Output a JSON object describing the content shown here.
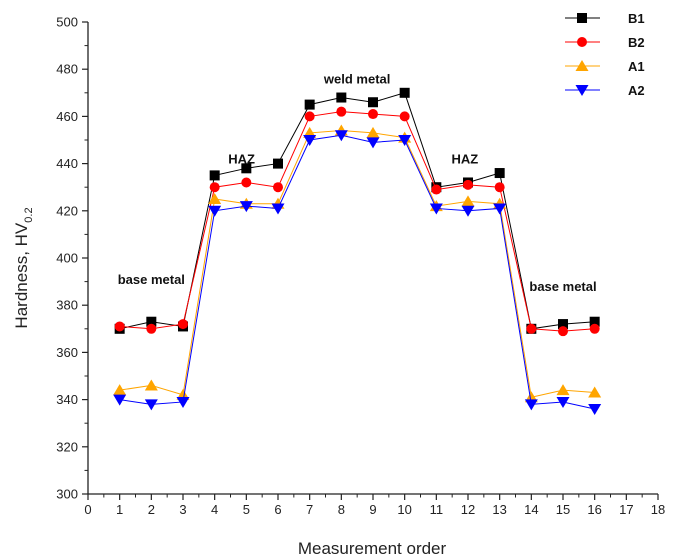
{
  "chart_data": {
    "type": "line",
    "xlabel": "Measurement order",
    "ylabel": "Hardness, HV",
    "ylabel_subscript": "0.2",
    "xlim": [
      0,
      18
    ],
    "ylim": [
      300,
      500
    ],
    "x_ticks": [
      0,
      1,
      2,
      3,
      4,
      5,
      6,
      7,
      8,
      9,
      10,
      11,
      12,
      13,
      14,
      15,
      16,
      17,
      18
    ],
    "y_ticks": [
      300,
      320,
      340,
      360,
      380,
      400,
      420,
      440,
      460,
      480,
      500
    ],
    "grid": false,
    "legend_position": "top-right",
    "x": [
      1,
      2,
      3,
      4,
      5,
      6,
      7,
      8,
      9,
      10,
      11,
      12,
      13,
      14,
      15,
      16
    ],
    "series": [
      {
        "name": "B1",
        "color": "#000000",
        "marker": "square",
        "values": [
          370,
          373,
          371,
          435,
          438,
          440,
          465,
          468,
          466,
          470,
          430,
          432,
          436,
          370,
          372,
          373
        ]
      },
      {
        "name": "B2",
        "color": "#ff0000",
        "marker": "circle",
        "values": [
          371,
          370,
          372,
          430,
          432,
          430,
          460,
          462,
          461,
          460,
          429,
          431,
          430,
          370,
          369,
          370
        ]
      },
      {
        "name": "A1",
        "color": "#ffa500",
        "marker": "triangle-up",
        "values": [
          344,
          346,
          342,
          425,
          423,
          423,
          453,
          454,
          453,
          451,
          422,
          424,
          423,
          341,
          344,
          343
        ]
      },
      {
        "name": "A2",
        "color": "#0000ff",
        "marker": "triangle-down",
        "values": [
          340,
          338,
          339,
          420,
          422,
          421,
          450,
          452,
          449,
          450,
          421,
          420,
          421,
          338,
          339,
          336
        ]
      }
    ],
    "annotations": [
      {
        "text": "base metal",
        "x": 2.0,
        "y": 389
      },
      {
        "text": "HAZ",
        "x": 4.85,
        "y": 440
      },
      {
        "text": "weld metal",
        "x": 8.5,
        "y": 474
      },
      {
        "text": "HAZ",
        "x": 11.9,
        "y": 440
      },
      {
        "text": "base metal",
        "x": 15.0,
        "y": 386
      }
    ]
  }
}
